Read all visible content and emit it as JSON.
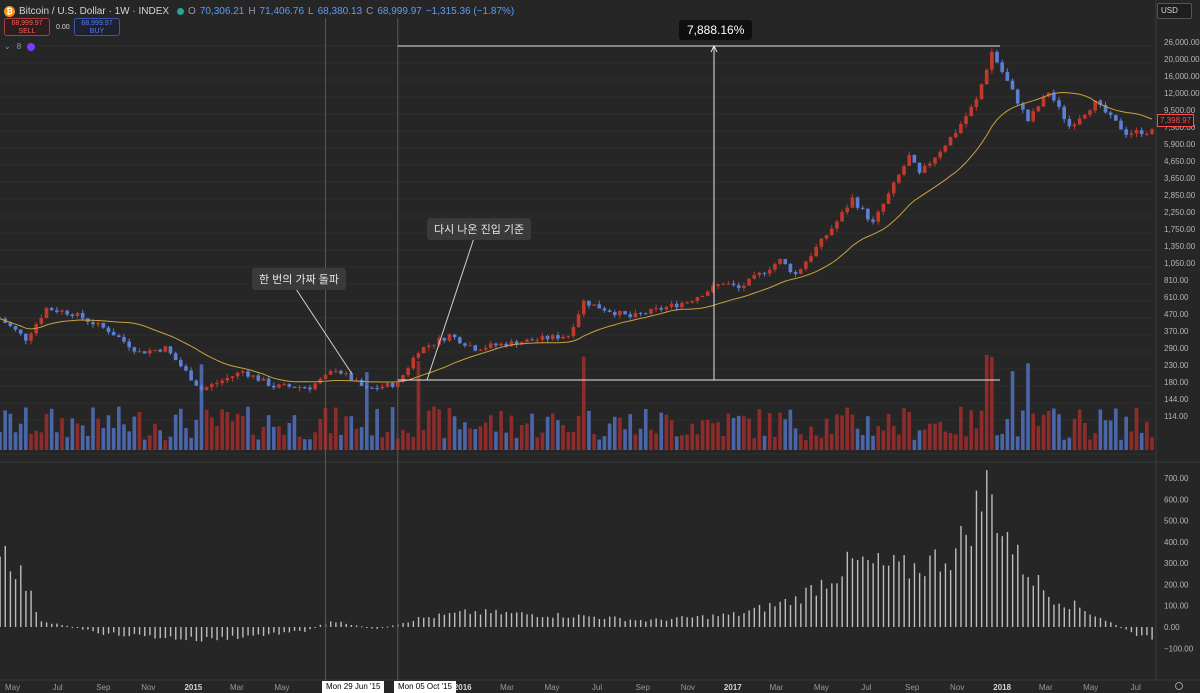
{
  "header": {
    "symbol_icon": "bitcoin-icon",
    "title": "Bitcoin / U.S. Dollar · 1W · INDEX",
    "open_k": "O",
    "open": "70,306.21",
    "high_k": "H",
    "high": "71,406.76",
    "low_k": "L",
    "low": "68,380.13",
    "close_k": "C",
    "close": "68,999.97",
    "change": "−1,315.36 (−1.87%)",
    "sell_price": "68,999.97",
    "sell_label": "SELL",
    "spread": "0.00",
    "buy_price": "68,999.97",
    "buy_label": "BUY",
    "indicators_count": "8",
    "currency": "USD"
  },
  "annotations": {
    "fake_breakout": "한 번의 가짜 돌파",
    "entry_again": "다시 나온 진입 기준",
    "gain_pct": "7,888.16%"
  },
  "current_price": "7,398.97",
  "crosshair_dates": [
    "Mon 29 Jun '15",
    "Mon 05 Oct '15"
  ],
  "colors": {
    "bg": "#262626",
    "up": "#c0392b",
    "down": "#5b7fd6",
    "ma": "#c8a23c",
    "grid": "#2f2f2f",
    "volume_up": "#8e2c2c",
    "volume_down": "#4a66a8",
    "osc": "#bdbdbd"
  },
  "chart_data": [
    {
      "type": "candlestick",
      "scale": "log",
      "x_axis": {
        "ticks": [
          "May",
          "Jul",
          "Sep",
          "Nov",
          "2015",
          "Mar",
          "May",
          "Jul",
          "Sep",
          "2016",
          "Mar",
          "May",
          "Jul",
          "Sep",
          "Nov",
          "2017",
          "Mar",
          "May",
          "Jul",
          "Sep",
          "Nov",
          "2018",
          "Mar",
          "May",
          "Jul"
        ]
      },
      "y_axis": {
        "ticks": [
          "26,000.00",
          "20,000.00",
          "16,000.00",
          "12,000.00",
          "9,500.00",
          "7,500.00",
          "5,900.00",
          "4,650.00",
          "3,650.00",
          "2,850.00",
          "2,250.00",
          "1,750.00",
          "1,350.00",
          "1,050.00",
          "810.00",
          "610.00",
          "470.00",
          "370.00",
          "290.00",
          "230.00",
          "180.00",
          "144.00",
          "114.00"
        ]
      },
      "anchors": [
        {
          "date": "2014-04-14",
          "close": 560
        },
        {
          "date": "2014-05-19",
          "close": 430
        },
        {
          "date": "2014-06-16",
          "close": 640
        },
        {
          "date": "2014-07-21",
          "close": 600
        },
        {
          "date": "2014-09-08",
          "close": 480
        },
        {
          "date": "2014-10-20",
          "close": 360
        },
        {
          "date": "2014-11-24",
          "close": 380
        },
        {
          "date": "2015-01-12",
          "close": 220
        },
        {
          "date": "2015-03-09",
          "close": 280
        },
        {
          "date": "2015-04-20",
          "close": 230
        },
        {
          "date": "2015-06-08",
          "close": 228
        },
        {
          "date": "2015-06-29",
          "close": 260
        },
        {
          "date": "2015-07-13",
          "close": 290
        },
        {
          "date": "2015-08-24",
          "close": 220
        },
        {
          "date": "2015-10-05",
          "close": 240
        },
        {
          "date": "2015-11-02",
          "close": 370
        },
        {
          "date": "2015-12-14",
          "close": 450
        },
        {
          "date": "2016-01-18",
          "close": 380
        },
        {
          "date": "2016-03-14",
          "close": 410
        },
        {
          "date": "2016-05-23",
          "close": 450
        },
        {
          "date": "2016-06-13",
          "close": 700
        },
        {
          "date": "2016-07-04",
          "close": 650
        },
        {
          "date": "2016-08-15",
          "close": 570
        },
        {
          "date": "2016-10-31",
          "close": 700
        },
        {
          "date": "2016-12-19",
          "close": 900
        },
        {
          "date": "2017-01-09",
          "close": 830
        },
        {
          "date": "2017-03-06",
          "close": 1200
        },
        {
          "date": "2017-03-27",
          "close": 1000
        },
        {
          "date": "2017-05-22",
          "close": 2000
        },
        {
          "date": "2017-06-12",
          "close": 2700
        },
        {
          "date": "2017-07-10",
          "close": 1950
        },
        {
          "date": "2017-08-28",
          "close": 4700
        },
        {
          "date": "2017-09-11",
          "close": 3700
        },
        {
          "date": "2017-10-30",
          "close": 6500
        },
        {
          "date": "2017-11-27",
          "close": 9800
        },
        {
          "date": "2017-12-18",
          "close": 18500
        },
        {
          "date": "2018-01-15",
          "close": 11000
        },
        {
          "date": "2018-02-05",
          "close": 7500
        },
        {
          "date": "2018-03-05",
          "close": 11000
        },
        {
          "date": "2018-04-02",
          "close": 7000
        },
        {
          "date": "2018-05-07",
          "close": 9500
        },
        {
          "date": "2018-06-18",
          "close": 6400
        },
        {
          "date": "2018-07-09",
          "close": 6500
        }
      ],
      "measure": {
        "from_price": 250,
        "to_price": 20000,
        "label": "7,888.16%"
      }
    },
    {
      "type": "bar",
      "title": "Oscillator",
      "y_axis": {
        "ticks": [
          "700.00",
          "600.00",
          "500.00",
          "400.00",
          "300.00",
          "200.00",
          "100.00",
          "0.00",
          "−100.00"
        ]
      },
      "anchors": [
        {
          "date": "2014-04-14",
          "value": 400
        },
        {
          "date": "2014-05-12",
          "value": 250
        },
        {
          "date": "2014-06-09",
          "value": 30
        },
        {
          "date": "2014-09-01",
          "value": -30
        },
        {
          "date": "2015-01-12",
          "value": -60
        },
        {
          "date": "2015-06-01",
          "value": -20
        },
        {
          "date": "2015-07-06",
          "value": 30
        },
        {
          "date": "2015-09-07",
          "value": -10
        },
        {
          "date": "2015-11-02",
          "value": 40
        },
        {
          "date": "2016-01-11",
          "value": 70
        },
        {
          "date": "2016-06-20",
          "value": 50
        },
        {
          "date": "2016-09-05",
          "value": 30
        },
        {
          "date": "2017-01-09",
          "value": 60
        },
        {
          "date": "2017-03-27",
          "value": 130
        },
        {
          "date": "2017-06-12",
          "value": 300
        },
        {
          "date": "2017-08-28",
          "value": 270
        },
        {
          "date": "2017-10-30",
          "value": 350
        },
        {
          "date": "2017-12-11",
          "value": 650
        },
        {
          "date": "2018-01-22",
          "value": 320
        },
        {
          "date": "2018-03-05",
          "value": 150
        },
        {
          "date": "2018-04-23",
          "value": 80
        },
        {
          "date": "2018-07-09",
          "value": -50
        }
      ]
    }
  ]
}
